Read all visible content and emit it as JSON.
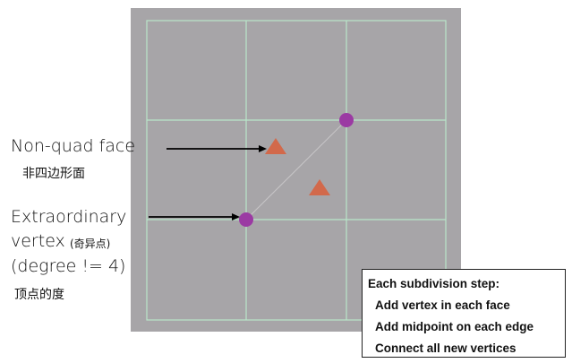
{
  "labels": {
    "non_quad_face": "Non-quad face",
    "non_quad_face_cn": "非四边形面",
    "extraordinary_1": "Extraordinary",
    "extraordinary_2": "vertex",
    "extraordinary_2_cn": "(奇异点)",
    "extraordinary_3": "(degree != 4)",
    "extraordinary_cn": "顶点的度"
  },
  "steps": {
    "title": "Each subdivision step:",
    "items": [
      "Add vertex in each face",
      "Add midpoint on each edge",
      "Connect all new vertices"
    ]
  },
  "colors": {
    "panel": "#a7a5a8",
    "grid": "#b9e6c9",
    "vertex": "#9b3aa3",
    "triangle": "#d2694b",
    "diagonal": "#c8c6c8",
    "arrow": "#000000"
  }
}
